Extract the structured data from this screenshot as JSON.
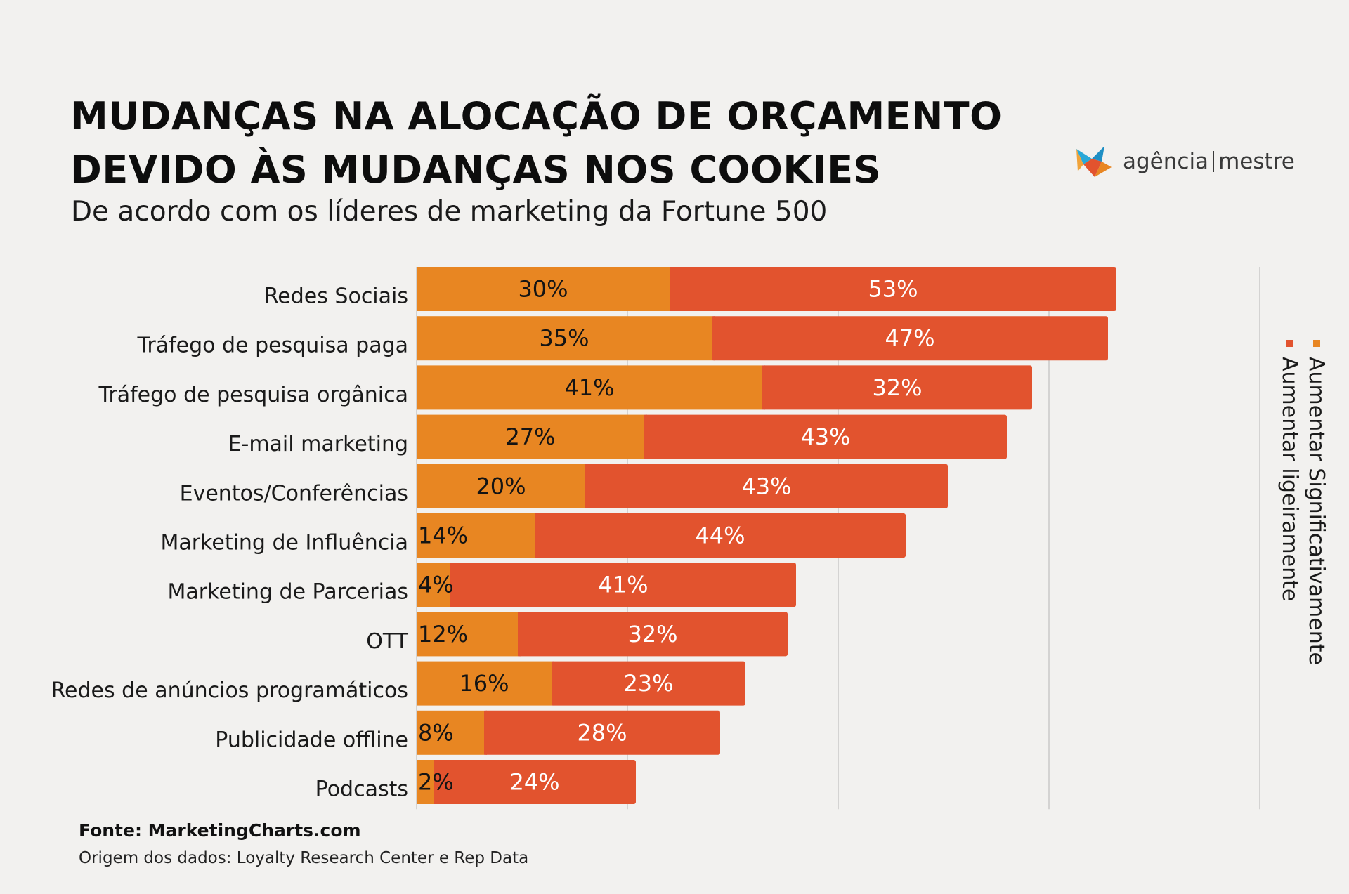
{
  "header": {
    "title_line1": "MUDANÇAS NA ALOCAÇÃO DE ORÇAMENTO",
    "title_line2": "DEVIDO ÀS MUDANÇAS NOS COOKIES",
    "subtitle": "De acordo com os líderes de marketing da Fortune 500"
  },
  "logo": {
    "text_left": "agência",
    "text_right": "mestre"
  },
  "footer": {
    "source": "Fonte: MarketingCharts.com",
    "origin": "Origem dos dados: Loyalty Research Center e Rep Data"
  },
  "colors": {
    "orange": "#e88622",
    "red": "#e2532e",
    "grid": "#c9c9c9",
    "background": "#f2f1ef"
  },
  "chart_data": {
    "type": "bar",
    "orientation": "horizontal",
    "stacked": true,
    "title": "MUDANÇAS NA ALOCAÇÃO DE ORÇAMENTO DEVIDO ÀS MUDANÇAS NOS COOKIES",
    "subtitle": "De acordo com os líderes de marketing da Fortune 500",
    "categories": [
      "Redes Sociais",
      "Tráfego de pesquisa paga",
      "Tráfego de pesquisa orgânica",
      "E-mail marketing",
      "Eventos/Conferências",
      "Marketing de Influência",
      "Marketing de Parcerias",
      "OTT",
      "Redes de anúncios programáticos",
      "Publicidade offline",
      "Podcasts"
    ],
    "series": [
      {
        "name": "Aumentar Significativamente",
        "color": "#e88622",
        "values": [
          30,
          35,
          41,
          27,
          20,
          14,
          4,
          12,
          16,
          8,
          2
        ]
      },
      {
        "name": "Aumentar ligeiramente",
        "color": "#e2532e",
        "values": [
          53,
          47,
          32,
          43,
          43,
          44,
          41,
          32,
          23,
          28,
          24
        ]
      }
    ],
    "xlim": [
      0,
      100
    ],
    "gridlines_at": [
      25,
      50,
      75,
      100
    ],
    "legend_position": "right",
    "data_label_suffix": "%"
  }
}
